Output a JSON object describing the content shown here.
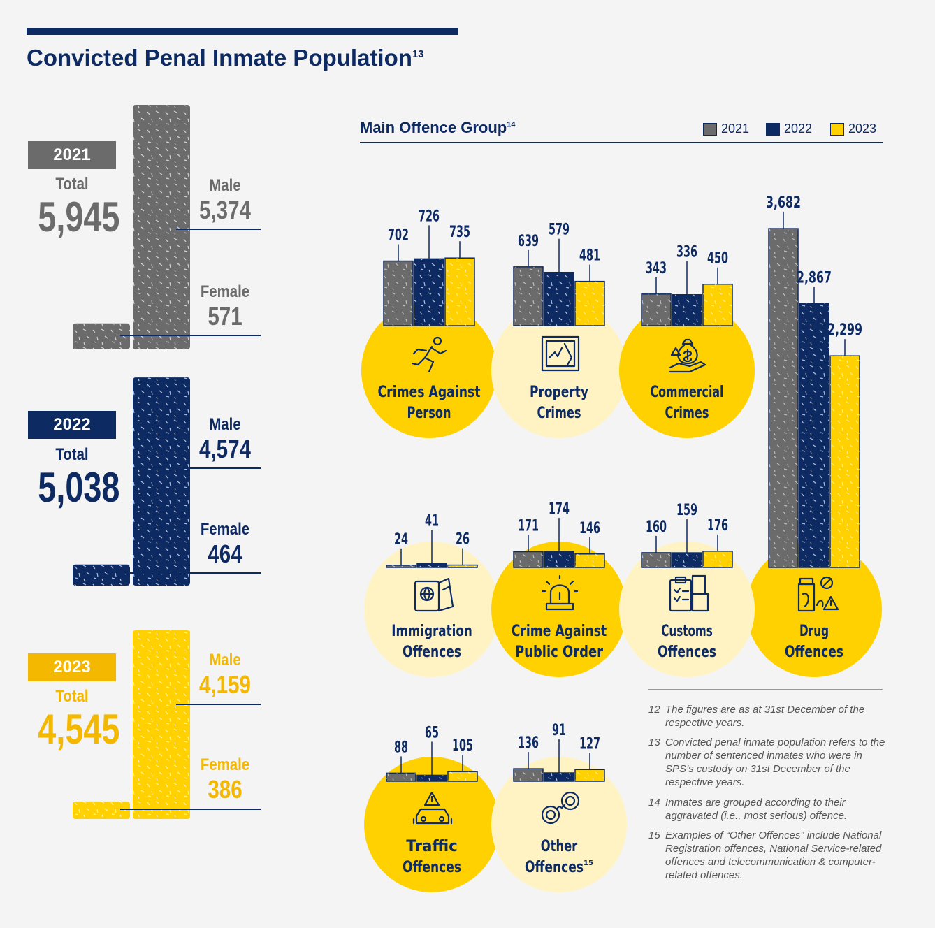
{
  "title": "Convicted Penal Inmate Population",
  "title_ref": "13",
  "colors": {
    "y2021": "#6b6b6b",
    "y2022": "#0e2a63",
    "y2023": "#ffd100",
    "navy": "#0e2a63",
    "yellow_dark": "#f5b800",
    "circle_light": "#fff3c4"
  },
  "populations": [
    {
      "year": "2021",
      "total_label": "Total",
      "total": "5,945",
      "male_label": "Male",
      "male": "5,374",
      "female_label": "Female",
      "female": "571"
    },
    {
      "year": "2022",
      "total_label": "Total",
      "total": "5,038",
      "male_label": "Male",
      "male": "4,574",
      "female_label": "Female",
      "female": "464"
    },
    {
      "year": "2023",
      "total_label": "Total",
      "total": "4,545",
      "male_label": "Male",
      "male": "4,159",
      "female_label": "Female",
      "female": "386"
    }
  ],
  "chart_data": {
    "type": "bar",
    "title": "Main Offence Group",
    "title_ref": "14",
    "legend": [
      "2021",
      "2022",
      "2023"
    ],
    "legend_position": "top-right",
    "categories": [
      "Crimes Against Person",
      "Property Crimes",
      "Commercial Crimes",
      "Drug Offences",
      "Immigration Offences",
      "Crime Against Public Order",
      "Customs Offences",
      "Traffic Offences",
      "Other Offences"
    ],
    "category_label_lines": [
      [
        "Crimes Against",
        "Person"
      ],
      [
        "Property",
        "Crimes"
      ],
      [
        "Commercial",
        "Crimes"
      ],
      [
        "Drug",
        "Offences"
      ],
      [
        "Immigration",
        "Offences"
      ],
      [
        "Crime Against",
        "Public Order"
      ],
      [
        "Customs",
        "Offences"
      ],
      [
        "Traffic",
        "Offences"
      ],
      [
        "Other",
        "Offences"
      ]
    ],
    "category_refs": [
      "",
      "",
      "",
      "",
      "",
      "",
      "",
      "",
      "15"
    ],
    "icons": [
      "running-person-icon",
      "broken-window-icon",
      "money-bag-hand-icon",
      "drug-bottle-icon",
      "passport-icon",
      "siren-icon",
      "customs-clipboard-icon",
      "traffic-cars-icon",
      "handcuffs-icon"
    ],
    "series": [
      {
        "name": "2021",
        "values": [
          702,
          639,
          343,
          3682,
          24,
          171,
          160,
          88,
          136
        ],
        "labels": [
          "702",
          "639",
          "343",
          "3,682",
          "24",
          "171",
          "160",
          "88",
          "136"
        ]
      },
      {
        "name": "2022",
        "values": [
          726,
          579,
          336,
          2867,
          41,
          174,
          159,
          65,
          91
        ],
        "labels": [
          "726",
          "579",
          "336",
          "2,867",
          "41",
          "174",
          "159",
          "65",
          "91"
        ]
      },
      {
        "name": "2023",
        "values": [
          735,
          481,
          450,
          2299,
          26,
          146,
          176,
          105,
          127
        ],
        "labels": [
          "735",
          "481",
          "450",
          "2,299",
          "26",
          "146",
          "176",
          "105",
          "127"
        ]
      }
    ]
  },
  "notes": [
    {
      "num": "12",
      "text": "The figures are as at 31st December of the respective years."
    },
    {
      "num": "13",
      "text": "Convicted penal inmate population refers to the number of sentenced inmates who were in SPS’s custody on 31st December of the respective years."
    },
    {
      "num": "14",
      "text": "Inmates are grouped according to their aggravated (i.e., most serious) offence."
    },
    {
      "num": "15",
      "text": "Examples of “Other Offences” include National Registration offences, National Service-related offences and telecommunication & computer-related offences."
    }
  ]
}
